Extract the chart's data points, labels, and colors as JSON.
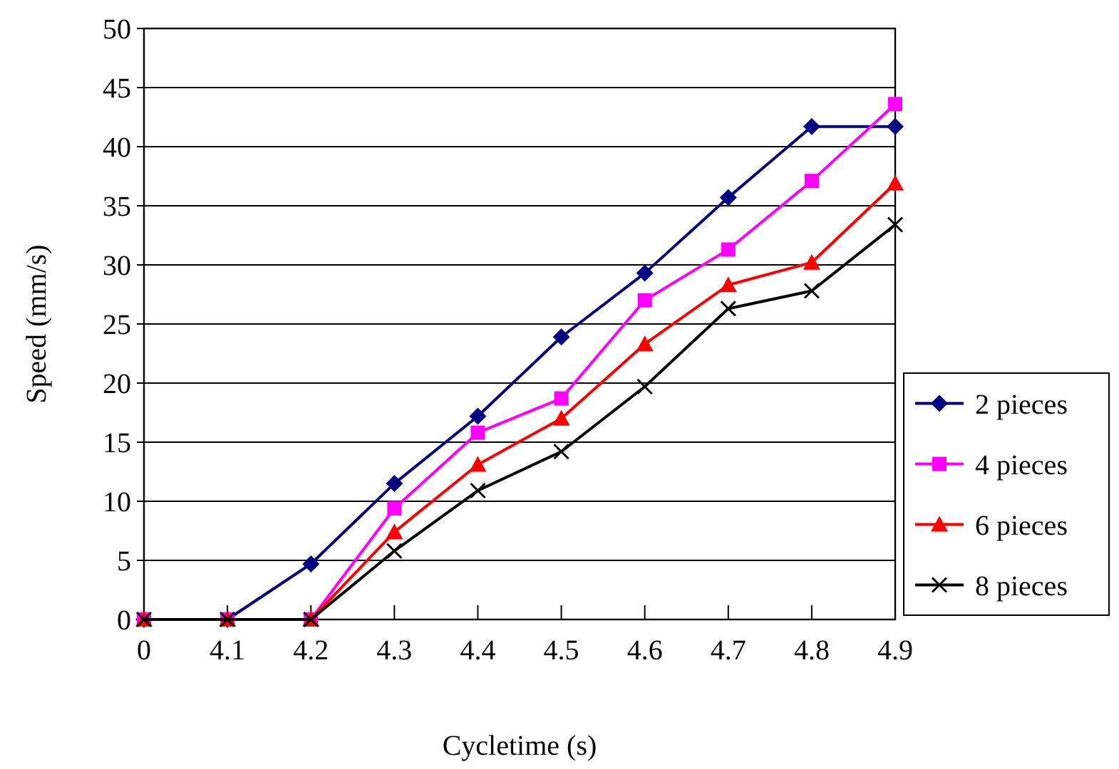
{
  "chart_data": {
    "type": "line",
    "xlabel": "Cycletime (s)",
    "ylabel": "Speed (mm/s)",
    "categories": [
      "0",
      "4.1",
      "4.2",
      "4.3",
      "4.4",
      "4.5",
      "4.6",
      "4.7",
      "4.8",
      "4.9"
    ],
    "series": [
      {
        "name": "2 pieces",
        "color": "#000080",
        "marker": "diamond",
        "values": [
          0,
          0,
          4.7,
          11.5,
          17.2,
          23.9,
          29.3,
          35.7,
          41.7,
          41.7
        ]
      },
      {
        "name": "4 pieces",
        "color": "#ff00ff",
        "marker": "square",
        "values": [
          0,
          0,
          0,
          9.4,
          15.8,
          18.7,
          27.0,
          31.3,
          37.1,
          43.6
        ]
      },
      {
        "name": "6 pieces",
        "color": "#ff0000",
        "marker": "triangle",
        "values": [
          0,
          0,
          0,
          7.4,
          13.1,
          17.0,
          23.3,
          28.3,
          30.2,
          36.9
        ]
      },
      {
        "name": "8 pieces",
        "color": "#000000",
        "marker": "cross",
        "values": [
          0,
          0,
          0,
          5.8,
          10.9,
          14.2,
          19.7,
          26.3,
          27.8,
          33.4
        ]
      }
    ],
    "ylim": [
      0,
      50
    ],
    "yticks": [
      0,
      5,
      10,
      15,
      20,
      25,
      30,
      35,
      40,
      45,
      50
    ],
    "grid": "y",
    "legend": "right"
  }
}
